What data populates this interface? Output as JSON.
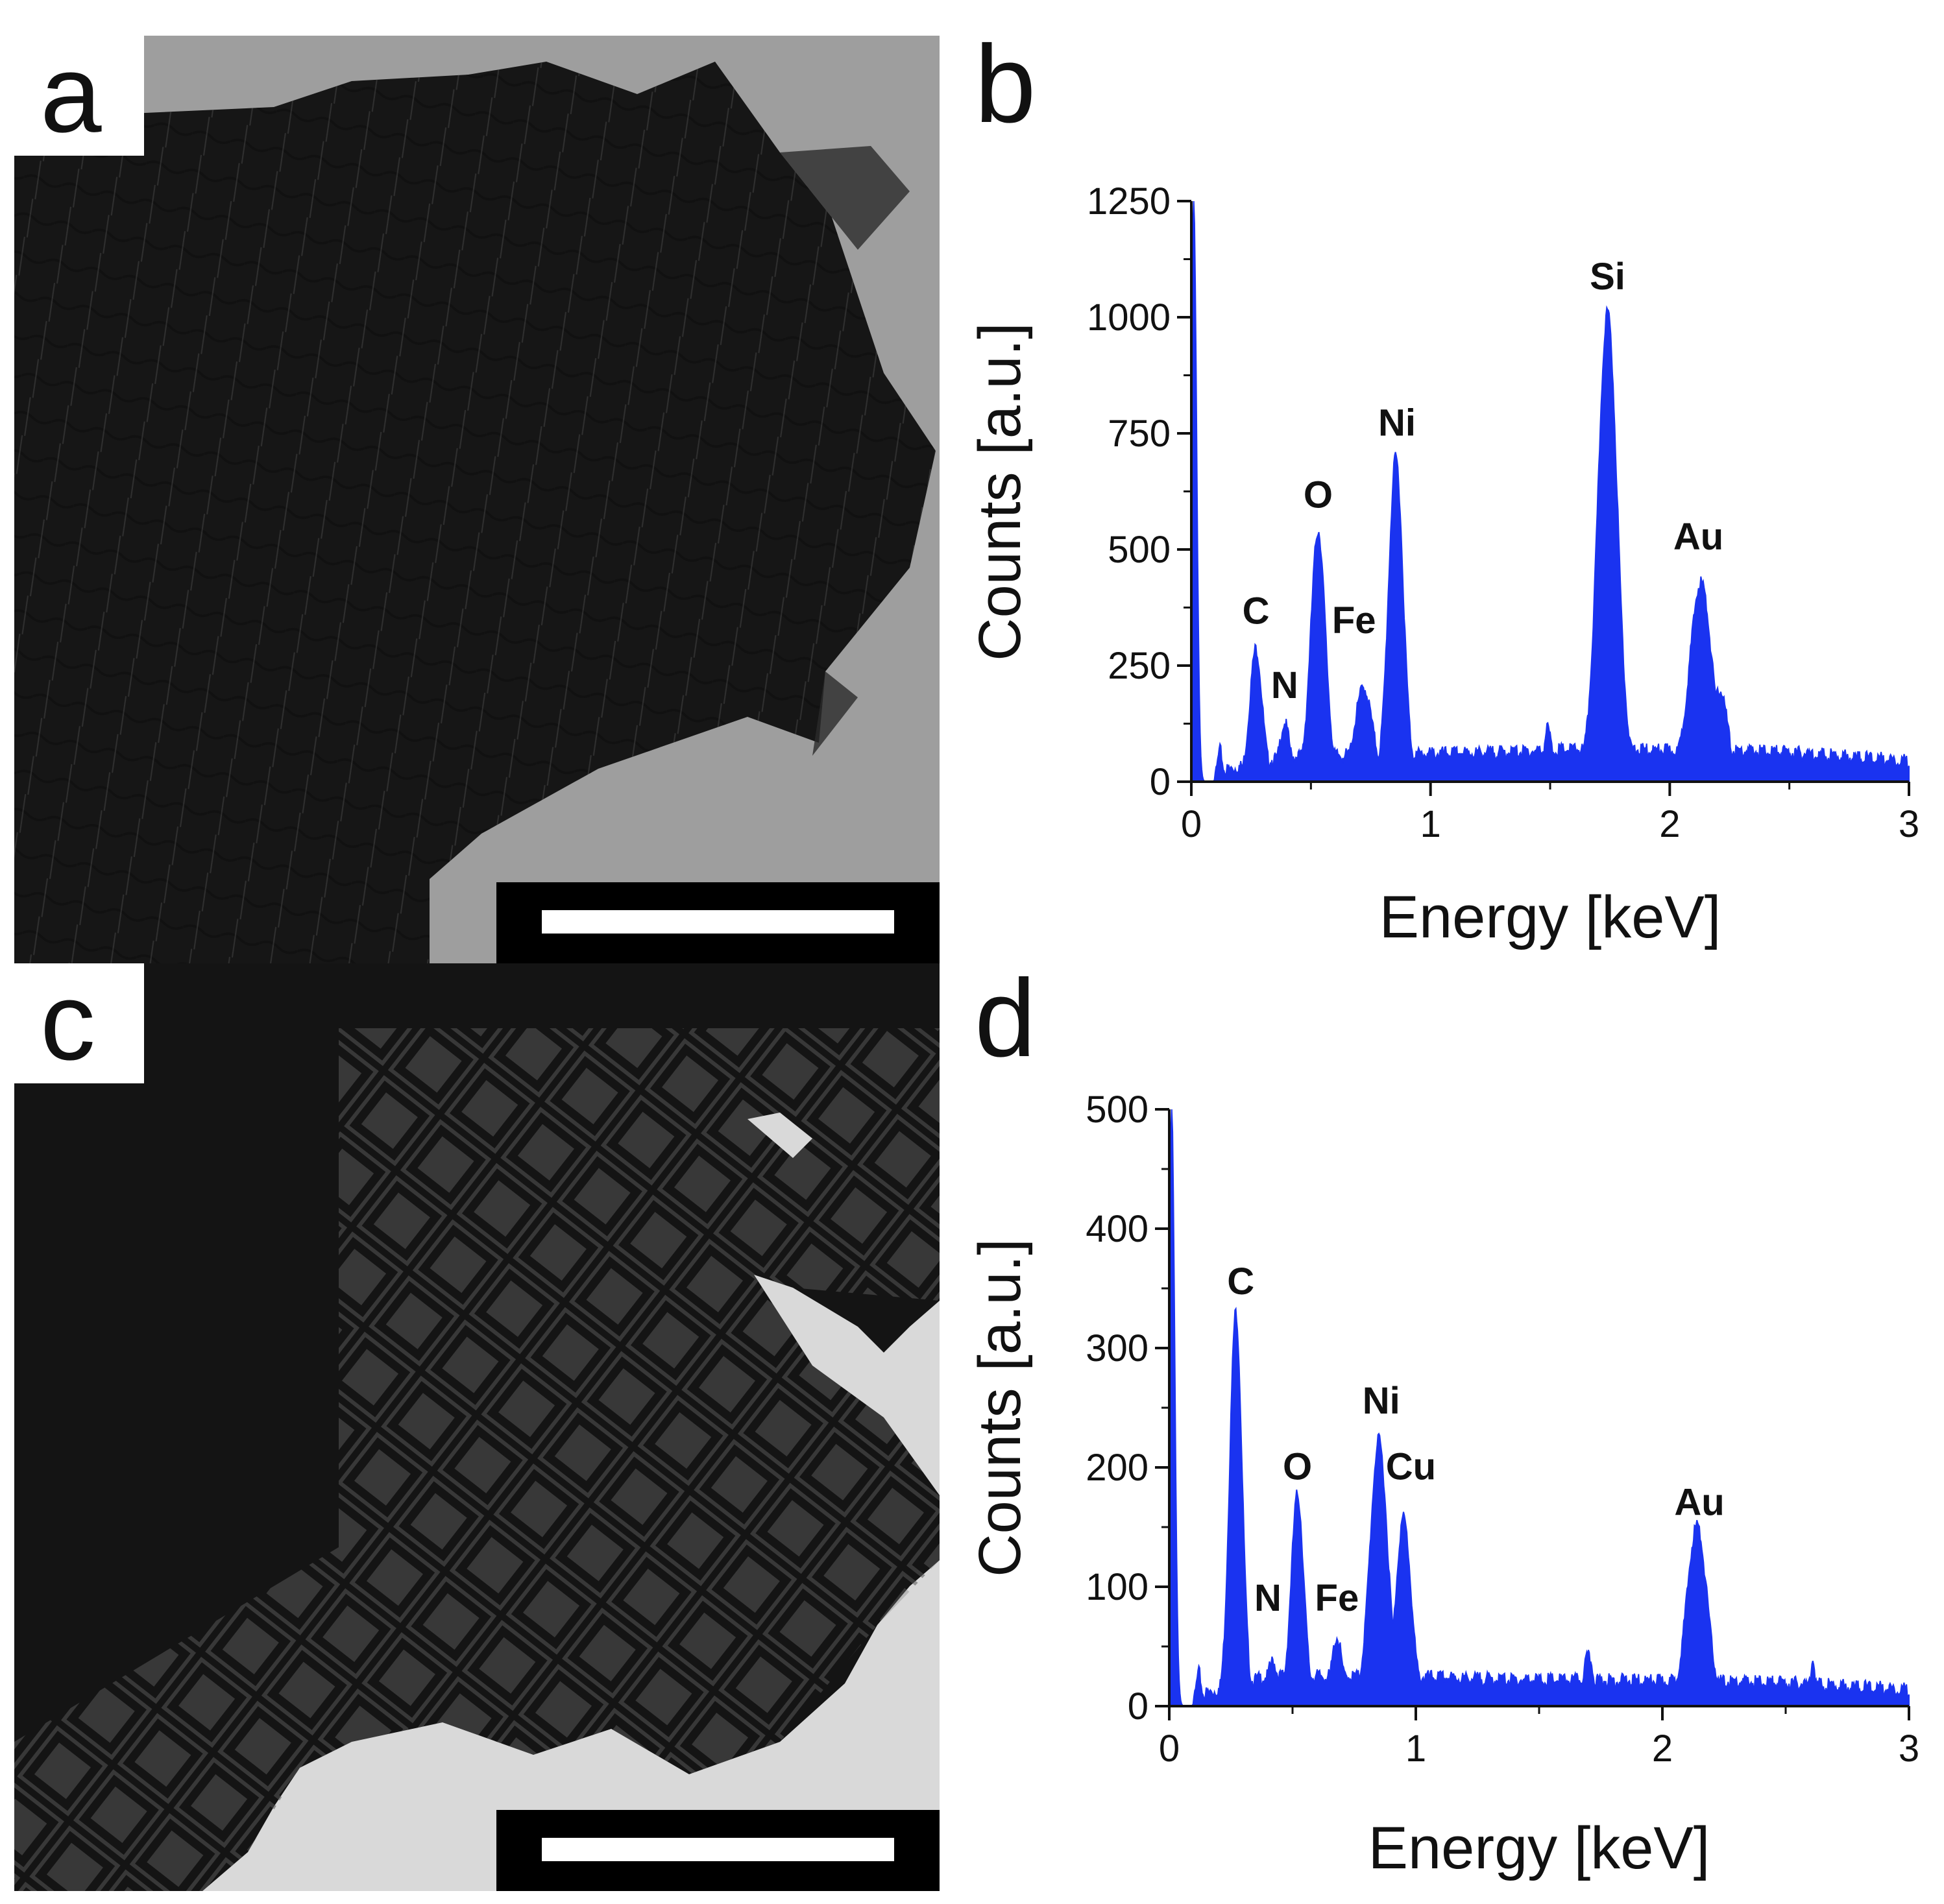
{
  "panels": {
    "a": {
      "letter": "a"
    },
    "b": {
      "letter": "b"
    },
    "c": {
      "letter": "c"
    },
    "d": {
      "letter": "d"
    }
  },
  "colors": {
    "spectrum": "#1a33f0",
    "axis": "#111111",
    "tem_dark": "#161616",
    "tem_bg_a": "#9e9e9e",
    "tem_bg_c": "#d9d9d9"
  },
  "chart_data": [
    {
      "id": "b",
      "type": "area",
      "xlabel": "Energy [keV]",
      "ylabel": "Counts [a.u.]",
      "xlim": [
        0,
        3
      ],
      "ylim": [
        0,
        1250
      ],
      "xticks": [
        0,
        1,
        2,
        3
      ],
      "xtick_labels": [
        "0",
        "1",
        "2",
        "3"
      ],
      "yticks": [
        0,
        250,
        500,
        750,
        1000,
        1250
      ],
      "ytick_labels": [
        "0",
        "250",
        "500",
        "750",
        "1000",
        "1250"
      ],
      "baseline": [
        [
          0.1,
          20
        ],
        [
          0.4,
          55
        ],
        [
          0.95,
          60
        ],
        [
          1.4,
          65
        ],
        [
          1.6,
          70
        ],
        [
          2.45,
          65
        ],
        [
          3.0,
          45
        ]
      ],
      "peaks": [
        {
          "x": 0.01,
          "y": 1250,
          "w": 0.012
        },
        {
          "x": 0.12,
          "y": 60,
          "w": 0.01
        },
        {
          "x": 0.27,
          "y": 275,
          "w": 0.025
        },
        {
          "x": 0.39,
          "y": 110,
          "w": 0.02
        },
        {
          "x": 0.53,
          "y": 525,
          "w": 0.03
        },
        {
          "x": 0.72,
          "y": 185,
          "w": 0.035
        },
        {
          "x": 0.855,
          "y": 680,
          "w": 0.03
        },
        {
          "x": 1.49,
          "y": 95,
          "w": 0.015
        },
        {
          "x": 1.74,
          "y": 990,
          "w": 0.04
        },
        {
          "x": 2.13,
          "y": 410,
          "w": 0.045
        },
        {
          "x": 2.21,
          "y": 180,
          "w": 0.03
        }
      ],
      "annotations": [
        {
          "label": "C",
          "x": 0.27,
          "y": 340
        },
        {
          "label": "N",
          "x": 0.39,
          "y": 180
        },
        {
          "label": "O",
          "x": 0.53,
          "y": 590
        },
        {
          "label": "Fe",
          "x": 0.68,
          "y": 320
        },
        {
          "label": "Ni",
          "x": 0.86,
          "y": 745
        },
        {
          "label": "Si",
          "x": 1.74,
          "y": 1060
        },
        {
          "label": "Au",
          "x": 2.12,
          "y": 500
        }
      ]
    },
    {
      "id": "d",
      "type": "area",
      "xlabel": "Energy [keV]",
      "ylabel": "Counts [a.u.]",
      "xlim": [
        0,
        3
      ],
      "ylim": [
        0,
        500
      ],
      "xticks": [
        0,
        1,
        2,
        3
      ],
      "xtick_labels": [
        "0",
        "1",
        "2",
        "3"
      ],
      "yticks": [
        0,
        100,
        200,
        300,
        400,
        500
      ],
      "ytick_labels": [
        "0",
        "100",
        "200",
        "300",
        "400",
        "500"
      ],
      "baseline": [
        [
          0.1,
          8
        ],
        [
          0.4,
          25
        ],
        [
          0.95,
          25
        ],
        [
          1.4,
          22
        ],
        [
          1.6,
          22
        ],
        [
          2.45,
          20
        ],
        [
          3.0,
          14
        ]
      ],
      "peaks": [
        {
          "x": 0.01,
          "y": 500,
          "w": 0.012
        },
        {
          "x": 0.12,
          "y": 25,
          "w": 0.01
        },
        {
          "x": 0.27,
          "y": 325,
          "w": 0.025
        },
        {
          "x": 0.42,
          "y": 30,
          "w": 0.02
        },
        {
          "x": 0.52,
          "y": 170,
          "w": 0.025
        },
        {
          "x": 0.68,
          "y": 50,
          "w": 0.02
        },
        {
          "x": 0.85,
          "y": 215,
          "w": 0.035
        },
        {
          "x": 0.95,
          "y": 150,
          "w": 0.03
        },
        {
          "x": 1.7,
          "y": 35,
          "w": 0.02
        },
        {
          "x": 2.14,
          "y": 145,
          "w": 0.04
        },
        {
          "x": 2.61,
          "y": 35,
          "w": 0.01
        }
      ],
      "annotations": [
        {
          "label": "C",
          "x": 0.29,
          "y": 345
        },
        {
          "label": "N",
          "x": 0.4,
          "y": 80
        },
        {
          "label": "O",
          "x": 0.52,
          "y": 190
        },
        {
          "label": "Fe",
          "x": 0.68,
          "y": 80
        },
        {
          "label": "Ni",
          "x": 0.86,
          "y": 245
        },
        {
          "label": "Cu",
          "x": 0.98,
          "y": 190
        },
        {
          "label": "Au",
          "x": 2.15,
          "y": 160
        }
      ]
    }
  ]
}
